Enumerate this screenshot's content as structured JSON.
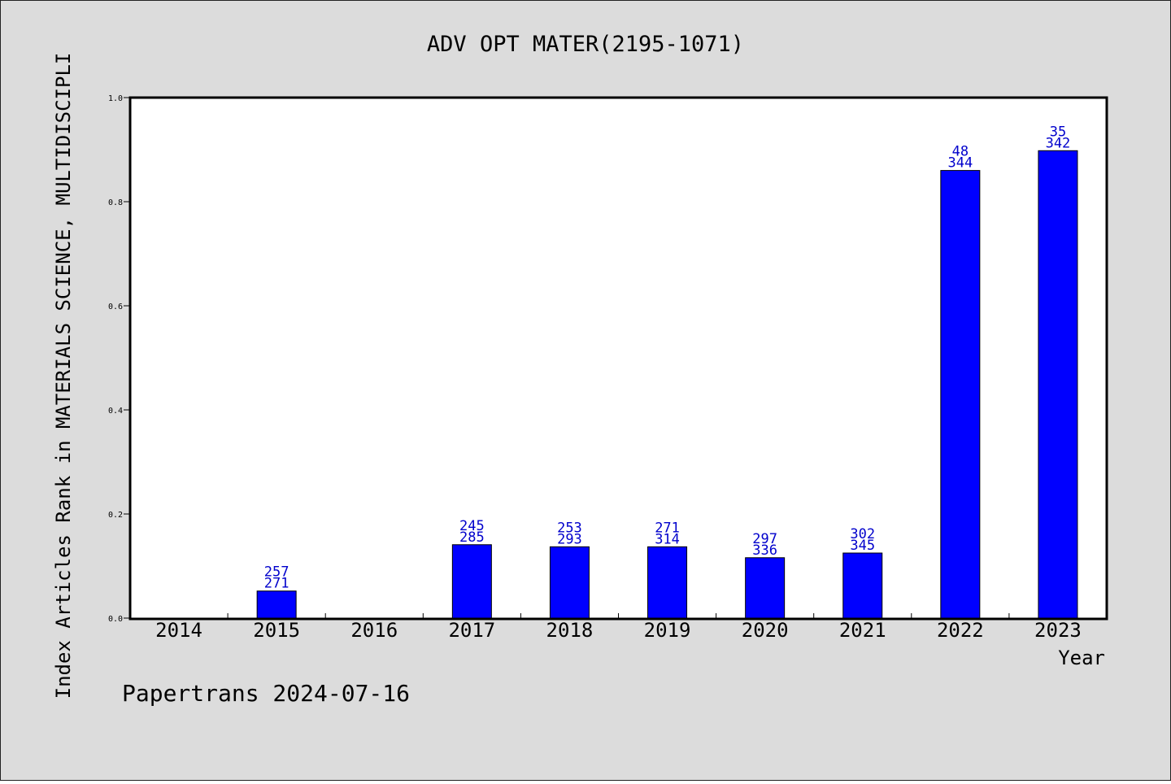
{
  "chart_data": {
    "type": "bar",
    "title": "ADV OPT MATER(2195-1071)",
    "xlabel": "Year",
    "ylabel": "Index Articles Rank in MATERIALS SCIENCE, MULTIDISCIPLI",
    "categories": [
      "2014",
      "2015",
      "2016",
      "2017",
      "2018",
      "2019",
      "2020",
      "2021",
      "2022",
      "2023"
    ],
    "values": [
      null,
      0.052,
      null,
      0.141,
      0.137,
      0.137,
      0.116,
      0.125,
      0.86,
      0.898
    ],
    "bar_labels": [
      null,
      [
        "257",
        "271"
      ],
      null,
      [
        "245",
        "285"
      ],
      [
        "253",
        "293"
      ],
      [
        "271",
        "314"
      ],
      [
        "297",
        "336"
      ],
      [
        "302",
        "345"
      ],
      [
        "48",
        "344"
      ],
      [
        "35",
        "342"
      ]
    ],
    "ylim": [
      0,
      1.0
    ],
    "yticks": [
      "0.0",
      "0.2",
      "0.4",
      "0.6",
      "0.8",
      "1.0"
    ],
    "grid": false,
    "bar_color": "#0000ff",
    "label_color": "#0000cc",
    "background": "#dcdcdc",
    "footer": "Papertrans 2024-07-16"
  }
}
